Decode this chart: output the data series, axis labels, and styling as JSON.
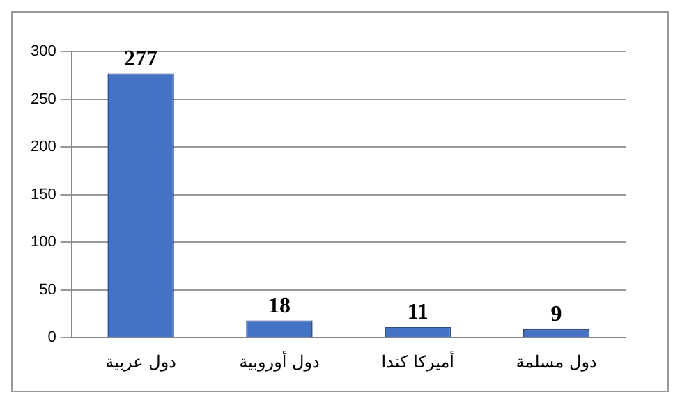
{
  "chart_data": {
    "type": "bar",
    "categories": [
      "دول عربية",
      "دول أوروبية",
      "أميركا كندا",
      "دول مسلمة"
    ],
    "values": [
      277,
      18,
      11,
      9
    ],
    "color": "#4472c4",
    "ylim": [
      0,
      300
    ],
    "yticks": [
      0,
      50,
      100,
      150,
      200,
      250,
      300
    ],
    "grid": "y",
    "legend": false,
    "data_labels": true
  }
}
